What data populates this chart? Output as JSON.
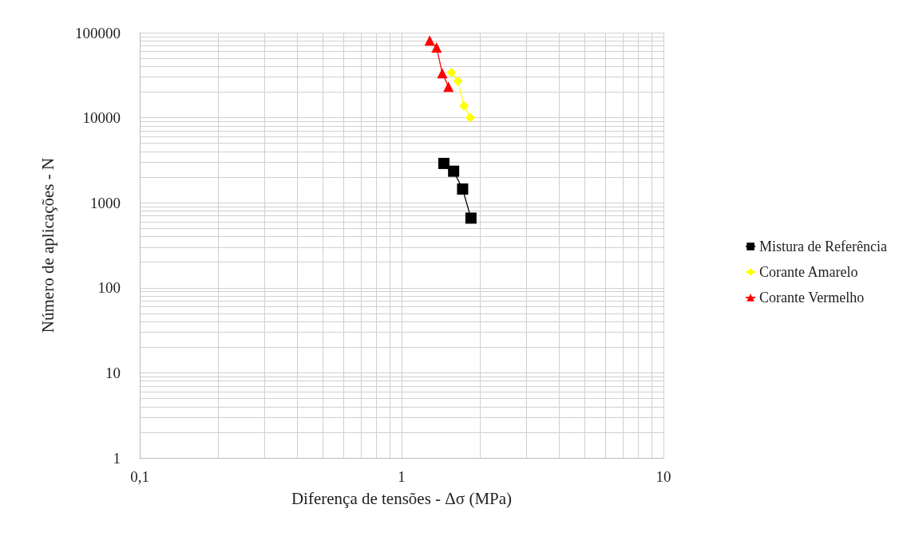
{
  "chart_data": {
    "type": "line",
    "xlabel": "Diferença de tensões - Δσ (MPa)",
    "ylabel": "Número de aplicações - N",
    "log": "xy",
    "grid": true,
    "legend": "right",
    "line_style": "solid",
    "xlim": [
      0.1,
      10
    ],
    "xticks": [
      {
        "value": 0.1,
        "label": "0,1"
      },
      1,
      10
    ],
    "ylim": [
      1,
      100000
    ],
    "yticks": [
      1,
      10,
      100,
      1000,
      10000,
      100000
    ],
    "series": [
      {
        "name": "Mistura de Referência",
        "color": "#000000",
        "marker": "square",
        "x": [
          1.45,
          1.58,
          1.71,
          1.84
        ],
        "values": [
          2900,
          2350,
          1450,
          660
        ]
      },
      {
        "name": "Corante Amarelo",
        "color": "#ffff00",
        "marker": "diamond",
        "x": [
          1.55,
          1.64,
          1.73,
          1.83
        ],
        "values": [
          34000,
          27000,
          13800,
          10000
        ]
      },
      {
        "name": "Corante Vermelho",
        "color": "#ff0000",
        "marker": "triangle",
        "x": [
          1.28,
          1.36,
          1.43,
          1.51
        ],
        "values": [
          81000,
          67000,
          33500,
          23200
        ]
      }
    ]
  }
}
